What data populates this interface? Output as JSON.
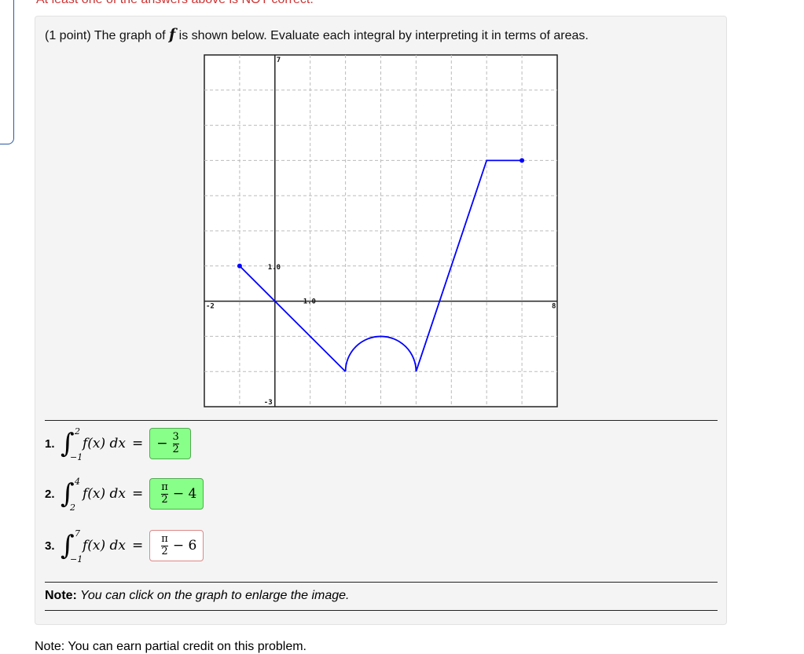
{
  "top_message": "At least one of the answers above is NOT correct.",
  "prompt": {
    "pre": "(1 point) The graph of ",
    "f": "f",
    "post": " is shown below. Evaluate each integral by interpreting it in terms of areas."
  },
  "chart_data": {
    "type": "line",
    "xlim": [
      -2,
      8
    ],
    "ylim": [
      -3,
      7
    ],
    "grid": true,
    "tick_labels": {
      "xmin": "-2",
      "xmax": "8",
      "ymin": "-3",
      "ymax": "7",
      "x_unit": "1.0",
      "y_unit": "1.0"
    },
    "segments": [
      {
        "kind": "line",
        "points": [
          [
            -1,
            1
          ],
          [
            0,
            0
          ],
          [
            2,
            -2
          ]
        ]
      },
      {
        "kind": "semicircle",
        "center": [
          3,
          -2
        ],
        "radius": 1,
        "side": "upper"
      },
      {
        "kind": "line",
        "points": [
          [
            4,
            -2
          ],
          [
            6,
            4
          ],
          [
            7,
            4
          ]
        ]
      }
    ],
    "endpoints": [
      [
        -1,
        1
      ],
      [
        7,
        4
      ]
    ],
    "color": "#0000ff"
  },
  "questions": [
    {
      "n": "1.",
      "lower": "−1",
      "upper": "2",
      "expr": "f(x) dx",
      "answer_num": "3",
      "answer_den": "2",
      "answer_pre": "−",
      "answer_post": "",
      "correct": true
    },
    {
      "n": "2.",
      "lower": "2",
      "upper": "4",
      "expr": "f(x) dx",
      "answer_num": "π",
      "answer_den": "2",
      "answer_pre": "",
      "answer_post": "− 4",
      "correct": true
    },
    {
      "n": "3.",
      "lower": "−1",
      "upper": "7",
      "expr": "f(x) dx",
      "answer_num": "π",
      "answer_den": "2",
      "answer_pre": "",
      "answer_post": "− 6",
      "correct": false
    }
  ],
  "equals": "=",
  "note": {
    "label": "Note:",
    "text": " You can click on the graph to enlarge the image."
  },
  "bottom_note": "Note: You can earn partial credit on this problem."
}
